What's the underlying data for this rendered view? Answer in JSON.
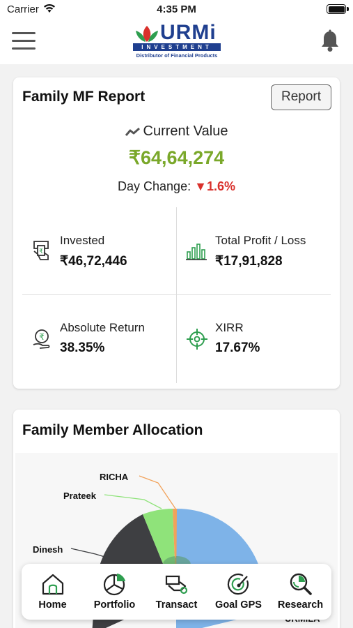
{
  "status_bar": {
    "carrier": "Carrier",
    "time": "4:35 PM"
  },
  "header": {
    "logo": {
      "brand": "URMi",
      "band": "INVESTMENT",
      "tagline": "Distributor of Financial Products"
    }
  },
  "report": {
    "title": "Family MF Report",
    "report_button": "Report",
    "current_value_label": "Current Value",
    "current_value": "₹64,64,274",
    "day_change_label": "Day Change:",
    "day_change_value": "1.6%",
    "metrics": {
      "invested": {
        "label": "Invested",
        "value": "₹46,72,446"
      },
      "profit": {
        "label": "Total Profit / Loss",
        "value": "₹17,91,828"
      },
      "absolute_return": {
        "label": "Absolute Return",
        "value": "38.35%"
      },
      "xirr": {
        "label": "XIRR",
        "value": "17.67%"
      }
    }
  },
  "allocation": {
    "title": "Family Member Allocation",
    "labels": {
      "richa": "RICHA",
      "prateek": "Prateek",
      "dinesh": "Dinesh",
      "urmila": "URMILA"
    }
  },
  "tabs": {
    "home": "Home",
    "portfolio": "Portfolio",
    "transact": "Transact",
    "goal_gps": "Goal GPS",
    "research": "Research"
  },
  "colors": {
    "accent_green": "#7aa82a",
    "down_red": "#d9302b",
    "brand_blue": "#1f3f8f",
    "icon_green": "#2e9e4f",
    "slice_blue": "#7eb3e8",
    "slice_dark": "#3e3f42",
    "slice_green": "#8fe37a",
    "slice_orange": "#f2a25a"
  }
}
